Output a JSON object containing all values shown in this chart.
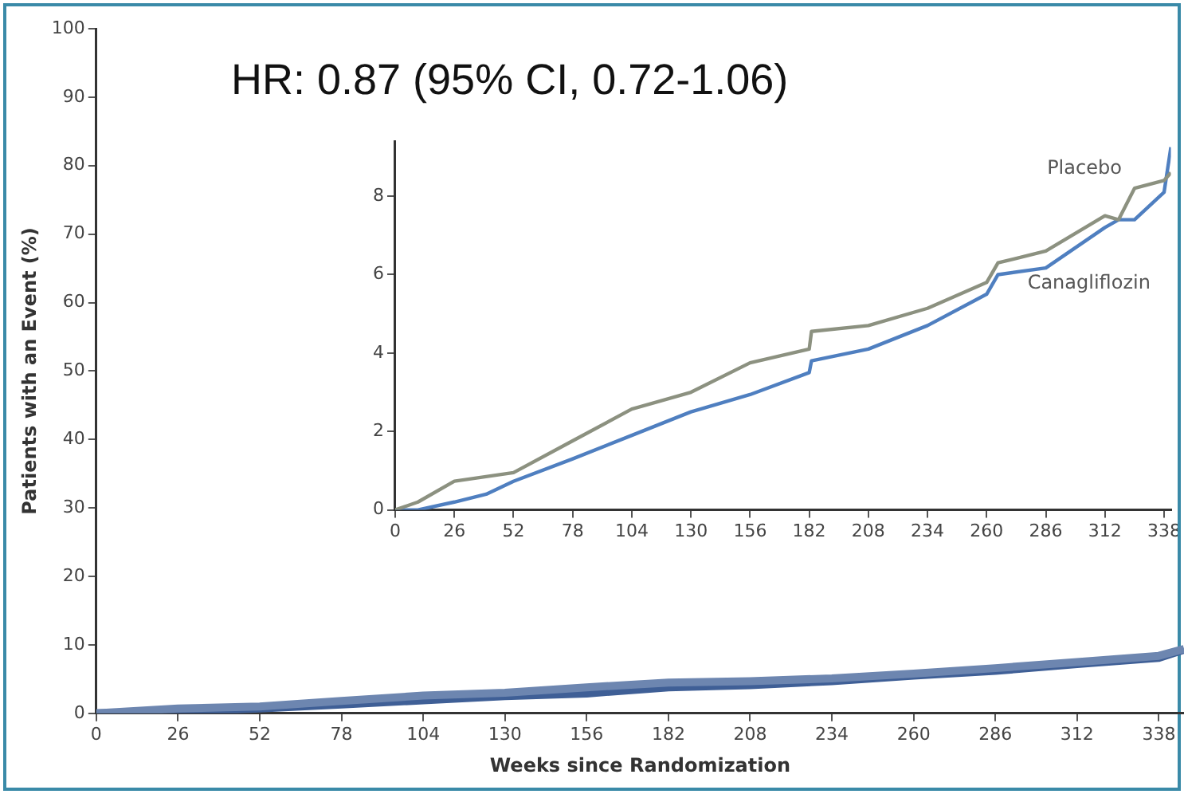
{
  "chart_data": [
    {
      "type": "line",
      "xlabel": "Weeks since Randomization",
      "ylabel": "Patients with an Event (%)",
      "annotations": [
        "HR: 0.87 (95% CI, 0.72-1.06)"
      ],
      "xlim": [
        0,
        346
      ],
      "xticks": [
        0,
        26,
        52,
        78,
        104,
        130,
        156,
        182,
        208,
        234,
        260,
        286,
        312,
        338
      ],
      "ylim": [
        0,
        100
      ],
      "yticks": [
        0,
        10,
        20,
        30,
        40,
        50,
        60,
        70,
        80,
        90,
        100
      ],
      "grid": false,
      "legend": false,
      "marker": "none",
      "series": [
        {
          "color": "#6d86b0",
          "x": [
            0,
            26,
            52,
            78,
            104,
            130,
            156,
            182,
            208,
            234,
            260,
            286,
            312,
            338,
            346
          ],
          "values": [
            0,
            0.7,
            1,
            1.8,
            2.6,
            3,
            3.8,
            4.5,
            4.7,
            5.1,
            5.8,
            6.6,
            7.5,
            8.4,
            9.4
          ]
        },
        {
          "color": "#3f5f96",
          "x": [
            0,
            26,
            52,
            78,
            104,
            130,
            156,
            182,
            208,
            234,
            260,
            286,
            312,
            338,
            346
          ],
          "values": [
            0,
            0.2,
            0.7,
            1.3,
            1.9,
            2.5,
            2.9,
            3.8,
            4.1,
            4.7,
            5.5,
            6.2,
            7.2,
            8.1,
            9.3
          ]
        }
      ]
    },
    {
      "type": "line",
      "xlim": [
        0,
        341
      ],
      "xticks": [
        0,
        26,
        52,
        78,
        104,
        130,
        156,
        182,
        208,
        234,
        260,
        286,
        312,
        338
      ],
      "ylim": [
        0,
        9.4
      ],
      "yticks": [
        0,
        2,
        4,
        6,
        8
      ],
      "grid": false,
      "legend": false,
      "marker": "none",
      "series": [
        {
          "name": "Placebo",
          "color": "#8c9180",
          "x": [
            0,
            10,
            26,
            52,
            78,
            104,
            130,
            156,
            182,
            183,
            208,
            234,
            260,
            265,
            286,
            312,
            318,
            325,
            338,
            341
          ],
          "values": [
            0,
            0.2,
            0.73,
            0.95,
            1.76,
            2.57,
            3,
            3.75,
            4.1,
            4.55,
            4.7,
            5.14,
            5.8,
            6.3,
            6.6,
            7.5,
            7.4,
            8.2,
            8.4,
            8.6
          ]
        },
        {
          "name": "Canagliflozin",
          "color": "#4f7fc0",
          "x": [
            0,
            10,
            26,
            40,
            52,
            78,
            104,
            130,
            156,
            182,
            183,
            208,
            234,
            260,
            265,
            286,
            312,
            318,
            325,
            338,
            341
          ],
          "values": [
            0,
            0,
            0.2,
            0.4,
            0.73,
            1.3,
            1.9,
            2.5,
            2.94,
            3.5,
            3.8,
            4.1,
            4.7,
            5.5,
            6,
            6.17,
            7.2,
            7.4,
            7.4,
            8.1,
            9.25
          ]
        }
      ]
    }
  ]
}
